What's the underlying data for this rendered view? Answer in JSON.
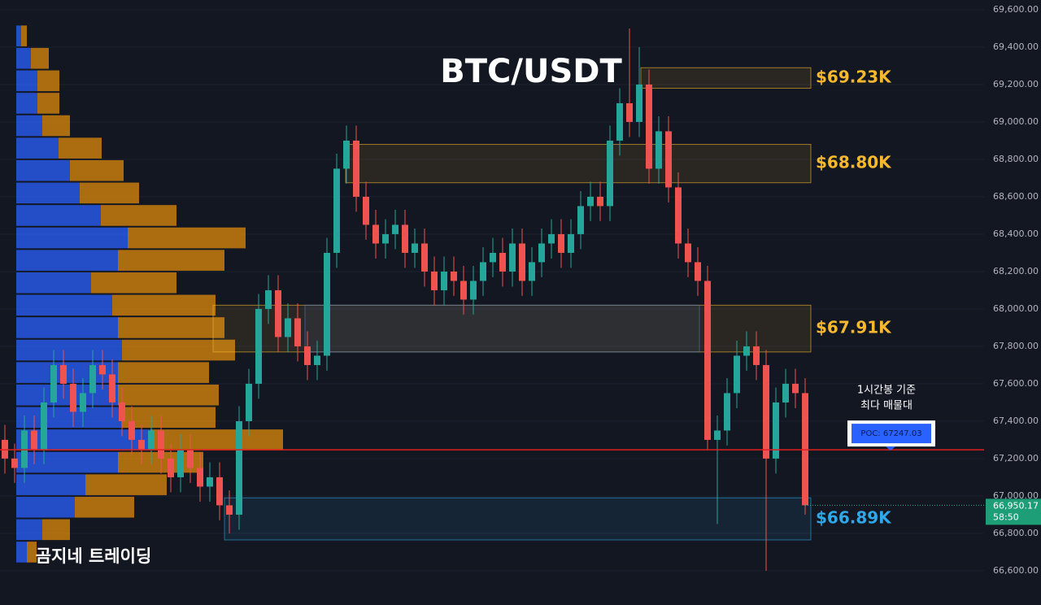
{
  "chart_data": {
    "type": "candlestick",
    "title": "BTC/USDT",
    "watermark": "곰지네 트레이딩",
    "annotation": [
      "1시간봉 기준",
      "최다 매물대"
    ],
    "ylim": [
      66417,
      69652
    ],
    "yticks": [
      {
        "value": 66600,
        "label": "66,600.00"
      },
      {
        "value": 66800,
        "label": "66,800.00"
      },
      {
        "value": 67000,
        "label": "67,000.00"
      },
      {
        "value": 67200,
        "label": "67,200.00"
      },
      {
        "value": 67400,
        "label": "67,400.00"
      },
      {
        "value": 67600,
        "label": "67,600.00"
      },
      {
        "value": 67800,
        "label": "67,800.00"
      },
      {
        "value": 68000,
        "label": "68,000.00"
      },
      {
        "value": 68200,
        "label": "68,200.00"
      },
      {
        "value": 68400,
        "label": "68,400.00"
      },
      {
        "value": 68600,
        "label": "68,600.00"
      },
      {
        "value": 68800,
        "label": "68,800.00"
      },
      {
        "value": 69000,
        "label": "69,000.00"
      },
      {
        "value": 69200,
        "label": "69,200.00"
      },
      {
        "value": 69400,
        "label": "69,400.00"
      },
      {
        "value": 69600,
        "label": "69,600.00"
      }
    ],
    "grid": true,
    "up_color": "#26a69a",
    "down_color": "#ef5350",
    "open": [
      67300,
      67200,
      67150,
      67350,
      67250,
      67500,
      67700,
      67600,
      67450,
      67550,
      67700,
      67650,
      67500,
      67400,
      67300,
      67250,
      67350,
      67200,
      67100,
      67250,
      67150,
      67050,
      67100,
      66950,
      66900,
      67400,
      67600,
      68000,
      68100,
      67850,
      67950,
      67800,
      67700,
      67750,
      68300,
      68750,
      68900,
      68600,
      68450,
      68350,
      68400,
      68450,
      68300,
      68350,
      68200,
      68100,
      68200,
      68150,
      68050,
      68150,
      68250,
      68300,
      68200,
      68350,
      68150,
      68250,
      68350,
      68400,
      68300,
      68400,
      68550,
      68600,
      68550,
      68900,
      69100,
      69000,
      69200,
      68750,
      68950,
      68650,
      68350,
      68250,
      68150,
      67300,
      67350,
      67550,
      67750,
      67800,
      67700,
      67200,
      67500,
      67600,
      67550
    ],
    "high": [
      67380,
      67280,
      67430,
      67430,
      67580,
      67780,
      67780,
      67680,
      67630,
      67780,
      67780,
      67730,
      67580,
      67480,
      67380,
      67430,
      67430,
      67280,
      67330,
      67330,
      67230,
      67180,
      67180,
      67030,
      67480,
      67680,
      68080,
      68180,
      68180,
      68030,
      68030,
      67880,
      67830,
      68380,
      68830,
      68980,
      68980,
      68680,
      68530,
      68480,
      68530,
      68530,
      68430,
      68430,
      68280,
      68280,
      68280,
      68230,
      68230,
      68330,
      68380,
      68380,
      68430,
      68430,
      68330,
      68430,
      68480,
      68480,
      68480,
      68630,
      68680,
      68680,
      68980,
      69180,
      69500,
      69400,
      69280,
      69030,
      69030,
      68730,
      68430,
      68330,
      68230,
      67430,
      67630,
      67830,
      67880,
      67880,
      67780,
      67580,
      67680,
      67680,
      67630
    ],
    "low": [
      67120,
      67070,
      67070,
      67170,
      67170,
      67420,
      67520,
      67370,
      67370,
      67470,
      67570,
      67420,
      67320,
      67220,
      67170,
      67170,
      67120,
      67020,
      67020,
      67070,
      66970,
      66970,
      66870,
      66800,
      66820,
      67320,
      67520,
      67920,
      67770,
      67770,
      67720,
      67620,
      67620,
      67670,
      68220,
      68670,
      68520,
      68370,
      68270,
      68270,
      68320,
      68220,
      68220,
      68120,
      68020,
      68020,
      68070,
      67970,
      67970,
      68070,
      68170,
      68120,
      68120,
      68070,
      68070,
      68170,
      68270,
      68220,
      68220,
      68320,
      68470,
      68470,
      68470,
      68820,
      68920,
      68920,
      68670,
      68670,
      68570,
      68270,
      68170,
      68070,
      67250,
      66850,
      67270,
      67470,
      67670,
      67620,
      66600,
      67120,
      67420,
      67470,
      66900
    ],
    "close": [
      67200,
      67150,
      67350,
      67250,
      67500,
      67700,
      67600,
      67450,
      67550,
      67700,
      67650,
      67500,
      67400,
      67300,
      67250,
      67350,
      67200,
      67100,
      67250,
      67150,
      67050,
      67100,
      66950,
      66900,
      67400,
      67600,
      68000,
      68100,
      67850,
      67950,
      67800,
      67700,
      67750,
      68300,
      68750,
      68900,
      68600,
      68450,
      68350,
      68400,
      68450,
      68300,
      68350,
      68200,
      68100,
      68200,
      68150,
      68050,
      68150,
      68250,
      68300,
      68200,
      68350,
      68150,
      68250,
      68350,
      68400,
      68300,
      68400,
      68550,
      68600,
      68550,
      68900,
      69100,
      69000,
      69200,
      68750,
      68950,
      68650,
      68350,
      68250,
      68150,
      67300,
      67350,
      67550,
      67750,
      67800,
      67700,
      67200,
      67500,
      67600,
      67550,
      66950.17
    ],
    "last_price": {
      "value": 66950.17,
      "label": "66,950.17"
    },
    "countdown": "58:50",
    "poc": {
      "value": 67247.03,
      "label": "POC: 67247.03"
    },
    "zones": [
      {
        "label": "$69.23K",
        "top": 69290,
        "bottom": 69180,
        "color": "#f5b82e"
      },
      {
        "label": "$68.80K",
        "top": 68880,
        "bottom": 68675,
        "color": "#f5b82e"
      },
      {
        "label": "$67.91K",
        "top": 68020,
        "bottom": 67770,
        "color": "#f5b82e"
      },
      {
        "top": 68020,
        "bottom": 67770,
        "color": "#4a78c8"
      },
      {
        "label": "$66.89K",
        "top": 66990,
        "bottom": 66765,
        "color": "#2ea8e8"
      }
    ],
    "volume_profile": {
      "bin_top": 69520,
      "bin_size": 120,
      "buy_color": "#2962ff",
      "sell_color": "#e08a0b",
      "buy": [
        6,
        18,
        26,
        26,
        32,
        52,
        66,
        78,
        104,
        137,
        125,
        92,
        118,
        125,
        130,
        125,
        125,
        130,
        165,
        125,
        85,
        72,
        32,
        13
      ],
      "sell": [
        7,
        22,
        27,
        27,
        34,
        53,
        66,
        73,
        93,
        145,
        131,
        105,
        127,
        131,
        139,
        112,
        124,
        115,
        163,
        105,
        100,
        73,
        34,
        12
      ]
    }
  }
}
